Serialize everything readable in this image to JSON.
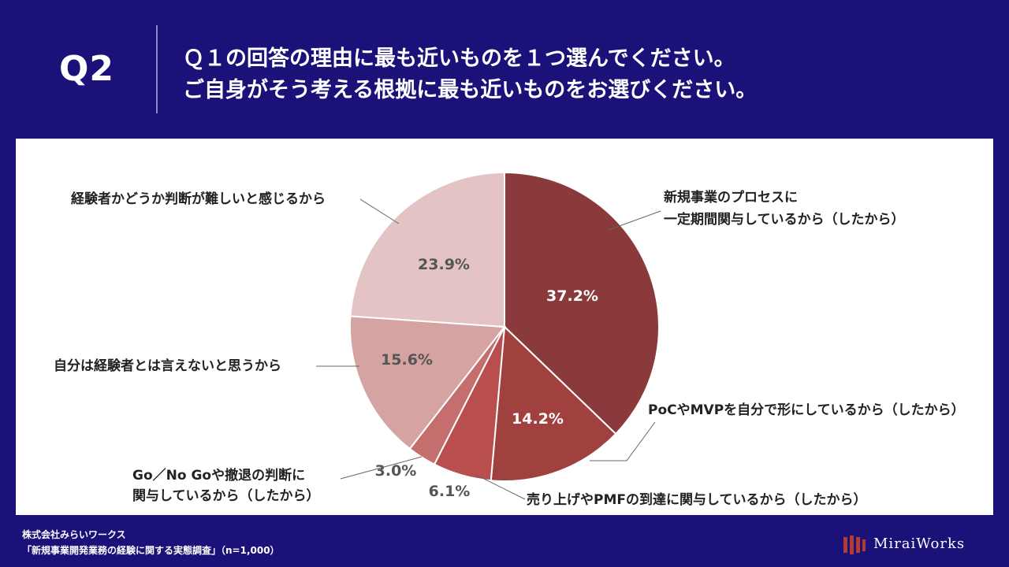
{
  "header": {
    "question_number": "Q2",
    "question_line1": "Ｑ１の回答の理由に最も近いものを１つ選んでください。",
    "question_line2": "ご自身がそう考える根拠に最も近いものをお選びください。"
  },
  "chart_data": {
    "type": "pie",
    "start_angle_deg": 0,
    "direction": "clockwise",
    "slices": [
      {
        "label": "新規事業のプロセスに\n一定期間関与しているから（したから）",
        "value": 37.2,
        "display": "37.2%",
        "color": "#8b3a3b"
      },
      {
        "label": "PoCやMVPを自分で形にしているから（したから）",
        "value": 14.2,
        "display": "14.2%",
        "color": "#a04140"
      },
      {
        "label": "売り上げやPMFの到達に関与しているから（したから）",
        "value": 6.1,
        "display": "6.1%",
        "color": "#b84e4d"
      },
      {
        "label": "Go／No Goや撤退の判断に\n関与しているから（したから）",
        "value": 3.0,
        "display": "3.0%",
        "color": "#c46f6e"
      },
      {
        "label": "自分は経験者とは言えないと思うから",
        "value": 15.6,
        "display": "15.6%",
        "color": "#d6a3a3"
      },
      {
        "label": "経験者かどうか判断が難しいと感じるから",
        "value": 23.9,
        "display": "23.9%",
        "color": "#e3c3c4"
      }
    ]
  },
  "footer": {
    "company": "株式会社みらいワークス",
    "survey": "「新規事業開発業務の経験に関する実態調査」（n=1,000）"
  },
  "logo": {
    "text": "MiraiWorks",
    "mark_color": "#b43a35"
  }
}
